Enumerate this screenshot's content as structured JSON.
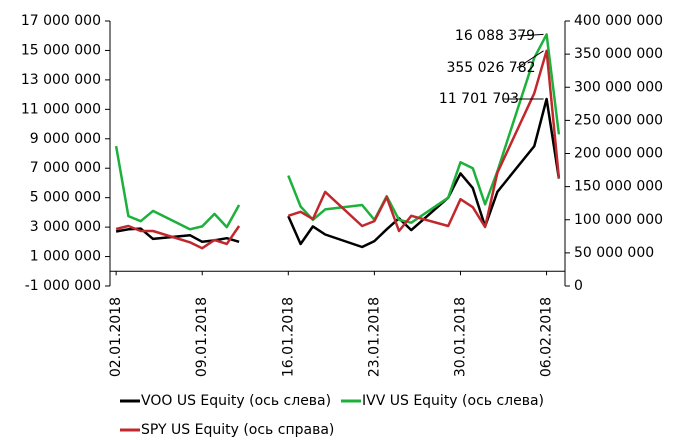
{
  "chart_data": {
    "type": "line",
    "x": [
      "02.01.2018",
      "03.01.2018",
      "04.01.2018",
      "05.01.2018",
      "08.01.2018",
      "09.01.2018",
      "10.01.2018",
      "11.01.2018",
      "12.01.2018",
      "15.01.2018",
      "16.01.2018",
      "17.01.2018",
      "18.01.2018",
      "19.01.2018",
      "22.01.2018",
      "23.01.2018",
      "24.01.2018",
      "25.01.2018",
      "26.01.2018",
      "29.01.2018",
      "30.01.2018",
      "31.01.2018",
      "01.02.2018",
      "02.02.2018",
      "05.02.2018",
      "06.02.2018",
      "07.02.2018"
    ],
    "series": [
      {
        "name": "VOO US Equity (ось слева)",
        "color": "#000000",
        "values": [
          2700000,
          2850000,
          2900000,
          2200000,
          2450000,
          2000000,
          2100000,
          2250000,
          2000000,
          null,
          3750000,
          1850000,
          3050000,
          2500000,
          1650000,
          2050000,
          2850000,
          3600000,
          2800000,
          5000000,
          6650000,
          5650000,
          3050000,
          5400000,
          8500000,
          11701703,
          6300000
        ],
        "value_labels": [
          null,
          null,
          null,
          null,
          null,
          null,
          null,
          null,
          null,
          null,
          null,
          null,
          null,
          null,
          null,
          null,
          null,
          null,
          null,
          null,
          null,
          null,
          null,
          null,
          null,
          "11 701 703",
          null
        ]
      },
      {
        "name": "IVV US Equity (ось слева)",
        "color": "#1db13c",
        "values": [
          8500000,
          3750000,
          3400000,
          4100000,
          2850000,
          3050000,
          3900000,
          3000000,
          4500000,
          null,
          6500000,
          4400000,
          3500000,
          4200000,
          4500000,
          3500000,
          5100000,
          3500000,
          3300000,
          5000000,
          7400000,
          7000000,
          4550000,
          6800000,
          14500000,
          16088379,
          9300000
        ],
        "value_labels": [
          null,
          null,
          null,
          null,
          null,
          null,
          null,
          null,
          null,
          null,
          null,
          null,
          null,
          null,
          null,
          null,
          null,
          null,
          null,
          null,
          null,
          null,
          null,
          null,
          null,
          "16 088 379",
          null
        ]
      },
      {
        "name": "SPY US Equity (ось справа)",
        "color": "#c0282d",
        "axis": "y2",
        "values": [
          86000000,
          90600000,
          83000000,
          83000000,
          66000000,
          57000000,
          69500000,
          63500000,
          90600000,
          null,
          106000000,
          112000000,
          101000000,
          142000000,
          90600000,
          98000000,
          134000000,
          83000000,
          106000000,
          90600000,
          131000000,
          119000000,
          89000000,
          171000000,
          291000000,
          355026782,
          163000000
        ],
        "value_labels": [
          null,
          null,
          null,
          null,
          null,
          null,
          null,
          null,
          null,
          null,
          null,
          null,
          null,
          null,
          null,
          null,
          null,
          null,
          null,
          null,
          null,
          null,
          null,
          null,
          null,
          "355 026 782",
          null
        ]
      }
    ],
    "xlim": [
      "02.01.2018",
      "07.02.2018"
    ],
    "xticks": [
      "02.01.2018",
      "09.01.2018",
      "16.01.2018",
      "23.01.2018",
      "30.01.2018",
      "06.02.2018"
    ],
    "ylim": [
      -1000000,
      17000000
    ],
    "yticks": [
      {
        "value": -1000000,
        "label": "-1 000 000"
      },
      {
        "value": 1000000,
        "label": "1 000 000"
      },
      {
        "value": 3000000,
        "label": "3 000 000"
      },
      {
        "value": 5000000,
        "label": "5 000 000"
      },
      {
        "value": 7000000,
        "label": "7 000 000"
      },
      {
        "value": 9000000,
        "label": "9 000 000"
      },
      {
        "value": 11000000,
        "label": "11 000 000"
      },
      {
        "value": 13000000,
        "label": "13 000 000"
      },
      {
        "value": 15000000,
        "label": "15 000 000"
      },
      {
        "value": 17000000,
        "label": "17 000 000"
      }
    ],
    "y2lim": [
      0,
      400000000
    ],
    "y2ticks": [
      0,
      {
        "value": 50000000,
        "label": "50 000 000"
      },
      {
        "value": 100000000,
        "label": "100 000 000"
      },
      {
        "value": 150000000,
        "label": "150 000 000"
      },
      {
        "value": 200000000,
        "label": "200 000 000"
      },
      {
        "value": 250000000,
        "label": "250 000 000"
      },
      {
        "value": 300000000,
        "label": "300 000 000"
      },
      {
        "value": 350000000,
        "label": "350 000 000"
      },
      {
        "value": 400000000,
        "label": "400 000 000"
      }
    ]
  }
}
